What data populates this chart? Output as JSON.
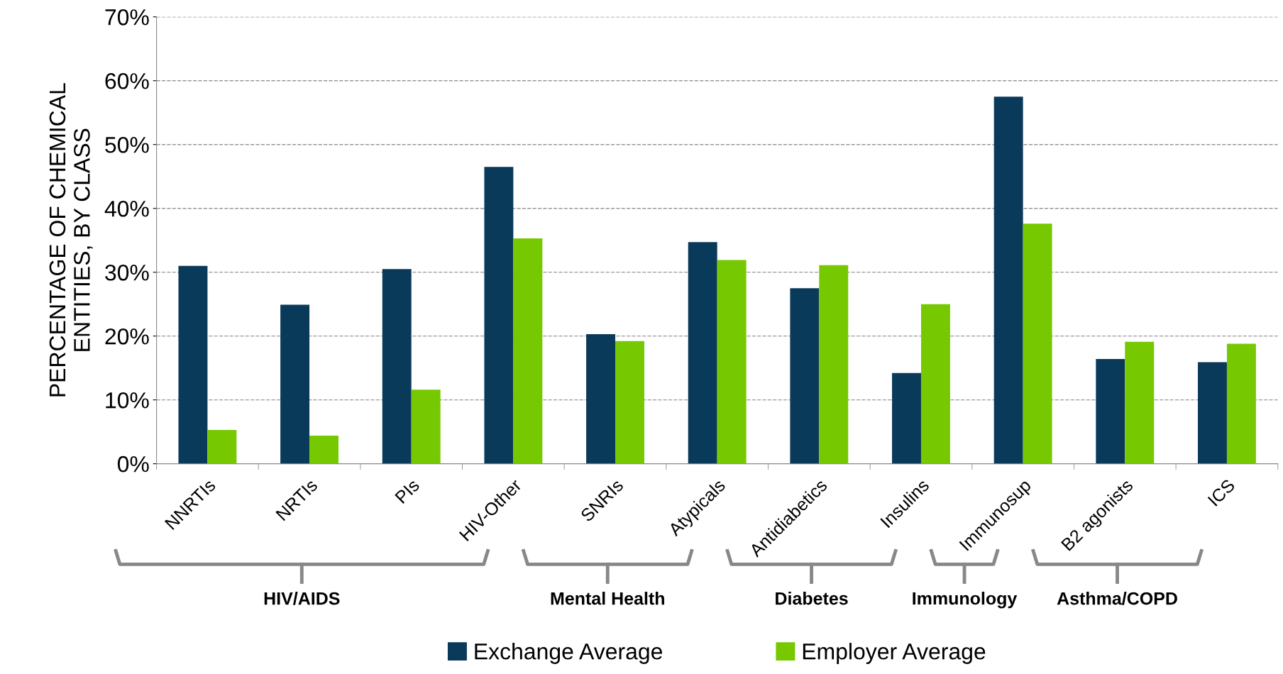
{
  "chart_data": {
    "type": "bar",
    "ylabel": "PERCENTAGE OF CHEMICAL\nENTITIES, BY CLASS",
    "categories": [
      "NNRTIs",
      "NRTIs",
      "PIs",
      "HIV-Other",
      "SNRIs",
      "Atypicals",
      "Antidiabetics",
      "Insulins",
      "Immunosup",
      "B2 agonists",
      "ICS"
    ],
    "series": [
      {
        "name": "Exchange Average",
        "color": "#0a3a5a",
        "values": [
          31.0,
          24.9,
          30.5,
          46.5,
          20.3,
          34.7,
          27.5,
          14.2,
          57.5,
          16.4,
          15.9
        ]
      },
      {
        "name": "Employer Average",
        "color": "#76c800",
        "values": [
          5.3,
          4.4,
          11.6,
          35.3,
          19.2,
          31.9,
          31.1,
          25.0,
          37.6,
          19.1,
          18.8
        ]
      }
    ],
    "ylim": [
      0,
      70
    ],
    "yticks": [
      {
        "value": 0,
        "label": "0%"
      },
      {
        "value": 10,
        "label": "10%"
      },
      {
        "value": 20,
        "label": "20%"
      },
      {
        "value": 30,
        "label": "30%"
      },
      {
        "value": 40,
        "label": "40%"
      },
      {
        "value": 50,
        "label": "50%"
      },
      {
        "value": 60,
        "label": "60%"
      },
      {
        "value": 70,
        "label": "70%"
      }
    ],
    "grid": "y",
    "legend": "bottom",
    "annotations": [
      "HIV/AIDS",
      "Mental Health",
      "Diabetes",
      "Immunology",
      "Asthma/COPD"
    ]
  }
}
